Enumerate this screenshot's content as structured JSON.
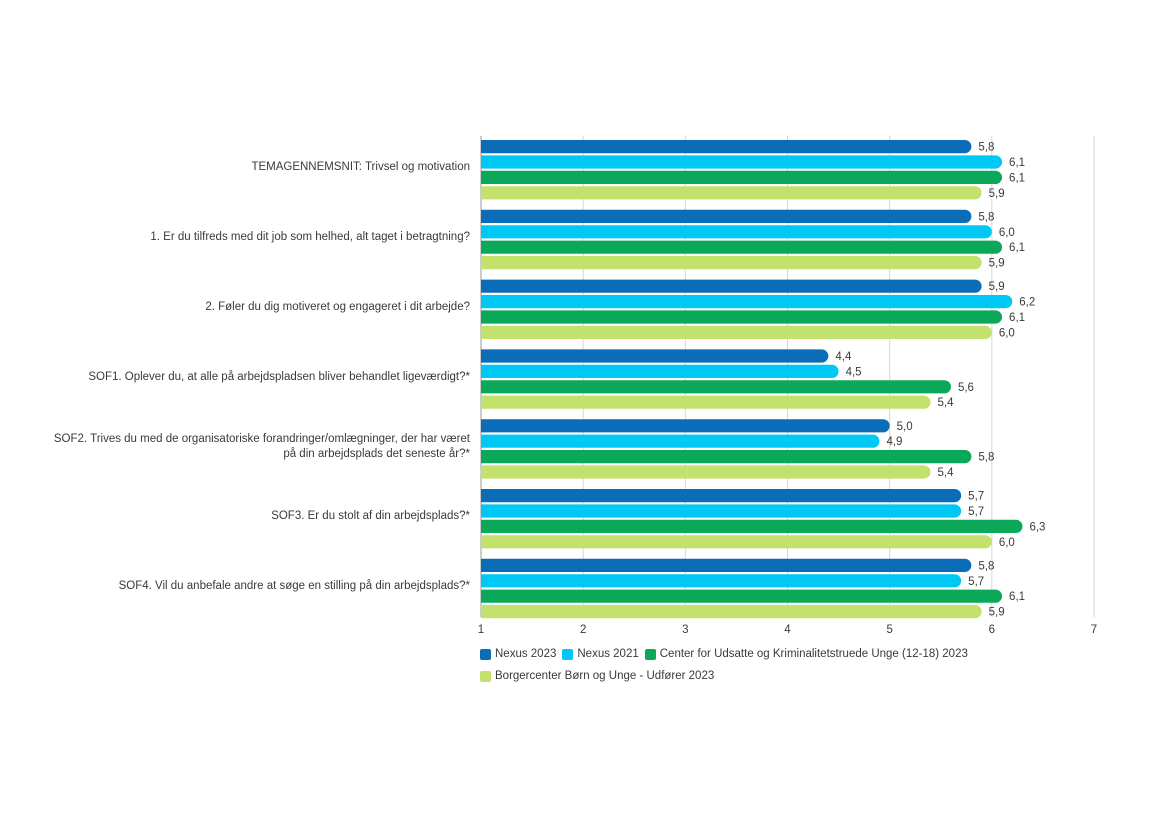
{
  "chart_data": {
    "type": "bar",
    "orientation": "horizontal",
    "categories": [
      "TEMAGENNEMSNIT: Trivsel og motivation",
      "1. Er du tilfreds med dit job som helhed, alt taget i betragtning?",
      "2. Føler du dig motiveret og engageret i dit arbejde?",
      "SOF1. Oplever du, at alle på arbejdspladsen bliver behandlet ligeværdigt?*",
      "SOF2. Trives du med de organisatoriske forandringer/omlægninger, der har været på din arbejdsplads det seneste år?*",
      "SOF3. Er du stolt af din arbejdsplads?*",
      "SOF4. Vil du anbefale andre at søge en stilling på din arbejdsplads?*"
    ],
    "series": [
      {
        "name": "Nexus 2023",
        "color": "#0b6db7",
        "values": [
          5.8,
          5.8,
          5.9,
          4.4,
          5.0,
          5.7,
          5.8
        ],
        "labels": [
          "5,8",
          "5,8",
          "5,9",
          "4,4",
          "5,0",
          "5,7",
          "5,8"
        ]
      },
      {
        "name": "Nexus 2021",
        "color": "#00c8f5",
        "values": [
          6.1,
          6.0,
          6.2,
          4.5,
          4.9,
          5.7,
          5.7
        ],
        "labels": [
          "6,1",
          "6,0",
          "6,2",
          "4,5",
          "4,9",
          "5,7",
          "5,7"
        ]
      },
      {
        "name": "Center for Udsatte og Kriminalitetstruede Unge (12-18) 2023",
        "color": "#0ca85a",
        "values": [
          6.1,
          6.1,
          6.1,
          5.6,
          5.8,
          6.3,
          6.1
        ],
        "labels": [
          "6,1",
          "6,1",
          "6,1",
          "5,6",
          "5,8",
          "6,3",
          "6,1"
        ]
      },
      {
        "name": "Borgercenter Børn og Unge - Udfører 2023",
        "color": "#c3e16d",
        "values": [
          5.9,
          5.9,
          6.0,
          5.4,
          5.4,
          6.0,
          5.9
        ],
        "labels": [
          "5,9",
          "5,9",
          "6,0",
          "5,4",
          "5,4",
          "6,0",
          "5,9"
        ]
      }
    ],
    "xlim": [
      1,
      7
    ],
    "xticks": [
      "1",
      "2",
      "3",
      "4",
      "5",
      "6",
      "7"
    ],
    "grid": true,
    "legend_position": "bottom-left"
  }
}
